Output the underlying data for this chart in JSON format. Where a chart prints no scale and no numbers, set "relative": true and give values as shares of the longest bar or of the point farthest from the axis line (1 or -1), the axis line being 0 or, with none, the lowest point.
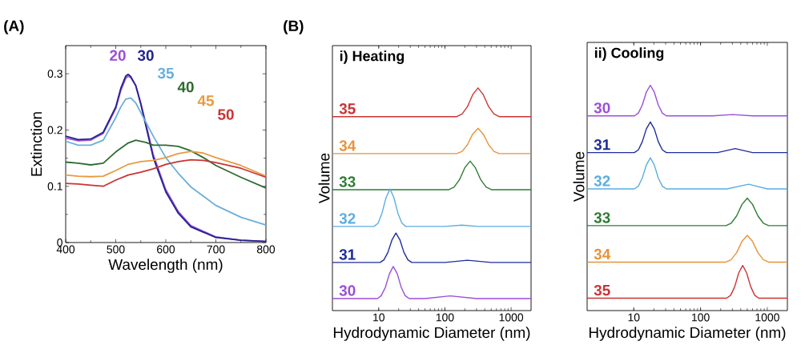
{
  "chart_data": [
    {
      "type": "line",
      "xlabel": "Wavelength (nm)",
      "ylabel": "Extinction",
      "xlim": [
        400,
        800
      ],
      "ylim": [
        0,
        0.35
      ],
      "xticks": [
        400,
        500,
        600,
        700,
        800
      ],
      "yticks": [
        0,
        0.1,
        0.2,
        0.3
      ],
      "annotations": [
        "(A)"
      ],
      "series": [
        {
          "name": "20",
          "color": "#9b4fd6",
          "x": [
            400,
            425,
            450,
            475,
            500,
            510,
            520,
            525,
            530,
            540,
            550,
            560,
            575,
            600,
            625,
            650,
            700,
            750,
            800
          ],
          "values": [
            0.186,
            0.181,
            0.182,
            0.194,
            0.238,
            0.27,
            0.292,
            0.296,
            0.293,
            0.279,
            0.248,
            0.212,
            0.156,
            0.094,
            0.055,
            0.03,
            0.01,
            0.004,
            0.002
          ]
        },
        {
          "name": "30",
          "color": "#23238e",
          "x": [
            400,
            425,
            450,
            475,
            500,
            510,
            520,
            525,
            530,
            540,
            550,
            560,
            575,
            600,
            625,
            650,
            700,
            750,
            800
          ],
          "values": [
            0.189,
            0.183,
            0.184,
            0.196,
            0.241,
            0.274,
            0.296,
            0.299,
            0.295,
            0.279,
            0.246,
            0.208,
            0.151,
            0.09,
            0.052,
            0.028,
            0.009,
            0.004,
            0.002
          ]
        },
        {
          "name": "35",
          "color": "#6aaedc",
          "x": [
            400,
            425,
            450,
            475,
            500,
            510,
            520,
            530,
            540,
            550,
            575,
            600,
            625,
            650,
            700,
            750,
            800
          ],
          "values": [
            0.18,
            0.173,
            0.173,
            0.182,
            0.222,
            0.241,
            0.255,
            0.257,
            0.248,
            0.231,
            0.189,
            0.151,
            0.123,
            0.099,
            0.066,
            0.045,
            0.031
          ]
        },
        {
          "name": "40",
          "color": "#2e6b30",
          "x": [
            400,
            425,
            450,
            475,
            500,
            525,
            540,
            560,
            575,
            600,
            625,
            650,
            675,
            700,
            750,
            800
          ],
          "values": [
            0.143,
            0.141,
            0.138,
            0.141,
            0.161,
            0.177,
            0.182,
            0.178,
            0.173,
            0.173,
            0.171,
            0.163,
            0.151,
            0.137,
            0.116,
            0.097
          ]
        },
        {
          "name": "45",
          "color": "#e89a40",
          "x": [
            400,
            425,
            450,
            475,
            500,
            525,
            550,
            575,
            600,
            625,
            650,
            675,
            700,
            750,
            800
          ],
          "values": [
            0.12,
            0.118,
            0.117,
            0.118,
            0.128,
            0.139,
            0.144,
            0.146,
            0.151,
            0.158,
            0.162,
            0.159,
            0.151,
            0.137,
            0.118
          ]
        },
        {
          "name": "50",
          "color": "#cc3333",
          "x": [
            400,
            425,
            450,
            475,
            500,
            525,
            550,
            575,
            600,
            625,
            650,
            675,
            700,
            750,
            800
          ],
          "values": [
            0.105,
            0.104,
            0.102,
            0.1,
            0.111,
            0.12,
            0.125,
            0.131,
            0.139,
            0.144,
            0.147,
            0.146,
            0.142,
            0.132,
            0.116
          ]
        }
      ]
    },
    {
      "type": "line",
      "relative": true,
      "log": "x",
      "title": "i) Heating",
      "xlabel": "Hydrodynamic Diameter (nm)",
      "ylabel": "Volume",
      "xlim": [
        2,
        2000
      ],
      "xticks": [
        10,
        100,
        1000
      ],
      "annotations": [
        "(B)"
      ],
      "series": [
        {
          "name": "35",
          "color": "#cc3333",
          "x": [
            2,
            151,
            182,
            219,
            263,
            316,
            379,
            457,
            550,
            661,
            2000
          ],
          "values": [
            0.871,
            0.871,
            0.883,
            0.916,
            0.97,
            1.0,
            0.97,
            0.916,
            0.883,
            0.871,
            0.871
          ]
        },
        {
          "name": "34",
          "color": "#e8923a",
          "x": [
            2,
            151,
            182,
            219,
            263,
            316,
            379,
            457,
            550,
            661,
            2000
          ],
          "values": [
            0.705,
            0.705,
            0.715,
            0.745,
            0.793,
            0.819,
            0.793,
            0.745,
            0.715,
            0.705,
            0.705
          ]
        },
        {
          "name": "33",
          "color": "#2e7d32",
          "x": [
            2,
            115,
            138,
            166,
            200,
            240,
            288,
            347,
            418,
            502,
            2000
          ],
          "values": [
            0.543,
            0.543,
            0.555,
            0.588,
            0.642,
            0.671,
            0.642,
            0.588,
            0.555,
            0.543,
            0.543
          ]
        },
        {
          "name": "32",
          "color": "#5aaee0",
          "x": [
            2,
            8.5,
            9.8,
            11.2,
            12.9,
            14.8,
            17.0,
            19.5,
            22.4,
            25.7,
            100,
            180,
            320,
            2000
          ],
          "values": [
            0.378,
            0.378,
            0.393,
            0.437,
            0.507,
            0.546,
            0.507,
            0.437,
            0.393,
            0.378,
            0.378,
            0.384,
            0.378,
            0.378
          ]
        },
        {
          "name": "31",
          "color": "#1f2d9c",
          "x": [
            2,
            10.5,
            12.0,
            13.8,
            15.9,
            18.2,
            20.9,
            24.0,
            27.6,
            31.6,
            100,
            219,
            500,
            2000
          ],
          "values": [
            0.216,
            0.216,
            0.228,
            0.262,
            0.318,
            0.348,
            0.318,
            0.262,
            0.228,
            0.216,
            0.216,
            0.226,
            0.216,
            0.216
          ]
        },
        {
          "name": "30",
          "color": "#9b4fd6",
          "x": [
            2,
            9.6,
            10.9,
            12.6,
            14.5,
            16.6,
            19.1,
            21.9,
            25.1,
            28.9,
            50,
            120,
            300,
            2000
          ],
          "values": [
            0.054,
            0.054,
            0.067,
            0.104,
            0.165,
            0.198,
            0.165,
            0.104,
            0.067,
            0.054,
            0.054,
            0.066,
            0.054,
            0.054
          ]
        }
      ]
    },
    {
      "type": "line",
      "relative": true,
      "log": "x",
      "title": "ii) Cooling",
      "xlabel": "Hydrodynamic Diameter (nm)",
      "ylabel": "Volume",
      "xlim": [
        2,
        2000
      ],
      "xticks": [
        10,
        100,
        1000
      ],
      "series": [
        {
          "name": "30",
          "color": "#9b4fd6",
          "x": [
            2,
            10.2,
            11.7,
            13.4,
            15.4,
            17.7,
            20.3,
            23.3,
            26.8,
            30.8,
            150,
            302,
            600,
            2000
          ],
          "values": [
            0.864,
            0.864,
            0.876,
            0.912,
            0.969,
            1.0,
            0.969,
            0.912,
            0.876,
            0.864,
            0.864,
            0.87,
            0.864,
            0.864
          ]
        },
        {
          "name": "31",
          "color": "#1f2d9c",
          "x": [
            2,
            10.2,
            11.7,
            13.4,
            15.4,
            17.7,
            20.3,
            23.3,
            26.8,
            30.8,
            180,
            331,
            600,
            2000
          ],
          "values": [
            0.701,
            0.701,
            0.713,
            0.749,
            0.806,
            0.837,
            0.806,
            0.749,
            0.713,
            0.701,
            0.701,
            0.719,
            0.701,
            0.701
          ]
        },
        {
          "name": "32",
          "color": "#5aaee0",
          "x": [
            2,
            10.2,
            11.7,
            13.4,
            15.4,
            17.7,
            20.3,
            23.3,
            26.8,
            30.8,
            250,
            525,
            1000,
            2000
          ],
          "values": [
            0.54,
            0.54,
            0.552,
            0.588,
            0.646,
            0.678,
            0.646,
            0.588,
            0.552,
            0.54,
            0.54,
            0.561,
            0.54,
            0.54
          ]
        },
        {
          "name": "33",
          "color": "#2e7d32",
          "x": [
            2,
            240,
            288,
            347,
            418,
            501,
            601,
            724,
            872,
            1047,
            2000
          ],
          "values": [
            0.377,
            0.377,
            0.388,
            0.42,
            0.471,
            0.499,
            0.471,
            0.42,
            0.388,
            0.377,
            0.377
          ]
        },
        {
          "name": "34",
          "color": "#e8923a",
          "x": [
            2,
            240,
            288,
            347,
            418,
            501,
            601,
            724,
            872,
            1047,
            2000
          ],
          "values": [
            0.215,
            0.215,
            0.226,
            0.257,
            0.307,
            0.334,
            0.307,
            0.257,
            0.226,
            0.215,
            0.215
          ]
        },
        {
          "name": "35",
          "color": "#cc3333",
          "x": [
            2,
            246,
            283,
            325,
            373,
            428,
            491,
            564,
            648,
            744,
            2000
          ],
          "values": [
            0.055,
            0.055,
            0.068,
            0.106,
            0.167,
            0.2,
            0.167,
            0.106,
            0.068,
            0.055,
            0.055
          ]
        }
      ]
    }
  ]
}
